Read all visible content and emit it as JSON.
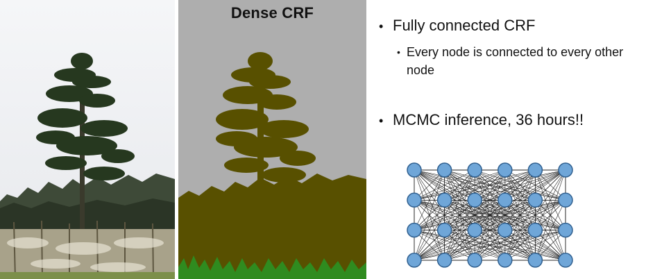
{
  "segmentation": {
    "title": "Dense CRF",
    "colors": {
      "background": "#aeaeae",
      "object": "#585000",
      "ground": "#2f8b1f"
    }
  },
  "bullets": {
    "main1": "Fully connected CRF",
    "sub1": "Every node is connected to every other node",
    "main2": "MCMC inference, 36 hours!!"
  },
  "graph": {
    "node_color": "#6fa6d8",
    "node_stroke": "#2f5f8f",
    "rows": 4,
    "cols": 6
  }
}
